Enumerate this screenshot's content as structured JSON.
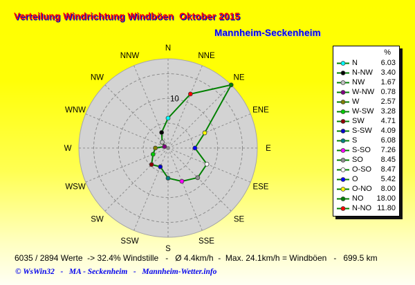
{
  "header": {
    "title": "Verteilung Windrichtung Windböen  Oktober 2015",
    "subtitle": "Mannheim-Seckenheim"
  },
  "colors": {
    "title": "#FF0000",
    "title_shadow": "#0000C8",
    "subtitle": "#0000EE",
    "background_top": "#FFFF00",
    "background_bottom": "#FFFFF4",
    "chart_disc": "#D3D3D3",
    "grid": "#8C8C8C",
    "legend_bg": "#FFFFFF",
    "legend_border": "#000000",
    "status_text": "#000000",
    "footer_text": "#0000EE"
  },
  "chart_data": {
    "type": "line",
    "subtype": "wind-rose-polar",
    "unit": "%",
    "radial_max": 18,
    "rings": [
      5,
      10,
      15
    ],
    "ring_label": "10",
    "line_color": "#008000",
    "axis_labels": [
      "N",
      "NNE",
      "NE",
      "ENE",
      "E",
      "ESE",
      "SE",
      "SSE",
      "S",
      "SSW",
      "SW",
      "WSW",
      "W",
      "WNW",
      "NW",
      "NNW"
    ],
    "points": [
      {
        "dir": "N",
        "value": 6.03,
        "color": "#00FFFF"
      },
      {
        "dir": "NNE",
        "value": 11.8,
        "color": "#FF0000"
      },
      {
        "dir": "NE",
        "value": 18.0,
        "color": "#008000"
      },
      {
        "dir": "ENE",
        "value": 8.0,
        "color": "#FFFF00"
      },
      {
        "dir": "E",
        "value": 5.42,
        "color": "#0000FF"
      },
      {
        "dir": "ESE",
        "value": 8.47,
        "color": "#FFFFFF"
      },
      {
        "dir": "SE",
        "value": 8.45,
        "color": "#909090"
      },
      {
        "dir": "SSE",
        "value": 7.26,
        "color": "#FF00FF"
      },
      {
        "dir": "S",
        "value": 6.08,
        "color": "#008080"
      },
      {
        "dir": "SSW",
        "value": 4.09,
        "color": "#0000CD"
      },
      {
        "dir": "SW",
        "value": 4.71,
        "color": "#900000"
      },
      {
        "dir": "WSW",
        "value": 3.28,
        "color": "#00CC00"
      },
      {
        "dir": "W",
        "value": 2.57,
        "color": "#808000"
      },
      {
        "dir": "WNW",
        "value": 0.78,
        "color": "#800080"
      },
      {
        "dir": "NW",
        "value": 1.67,
        "color": "#C0C0C0"
      },
      {
        "dir": "NNW",
        "value": 3.4,
        "color": "#000000"
      }
    ]
  },
  "legend": {
    "header": "%",
    "items": [
      {
        "label": "N",
        "value": "6.03",
        "color": "#00FFFF"
      },
      {
        "label": "N-NW",
        "value": "3.40",
        "color": "#000000"
      },
      {
        "label": "NW",
        "value": "1.67",
        "color": "#C0C0C0"
      },
      {
        "label": "W-NW",
        "value": "0.78",
        "color": "#800080"
      },
      {
        "label": "W",
        "value": "2.57",
        "color": "#808000"
      },
      {
        "label": "W-SW",
        "value": "3.28",
        "color": "#00CC00"
      },
      {
        "label": "SW",
        "value": "4.71",
        "color": "#900000"
      },
      {
        "label": "S-SW",
        "value": "4.09",
        "color": "#0000CD"
      },
      {
        "label": "S",
        "value": "6.08",
        "color": "#008080"
      },
      {
        "label": "S-SO",
        "value": "7.26",
        "color": "#FF00FF"
      },
      {
        "label": "SO",
        "value": "8.45",
        "color": "#909090"
      },
      {
        "label": "O-SO",
        "value": "8.47",
        "color": "#FFFFFF"
      },
      {
        "label": "O",
        "value": "5.42",
        "color": "#0000FF"
      },
      {
        "label": "O-NO",
        "value": "8.00",
        "color": "#FFFF00"
      },
      {
        "label": "NO",
        "value": "18.00",
        "color": "#008000"
      },
      {
        "label": "N-NO",
        "value": "11.80",
        "color": "#FF0000"
      }
    ]
  },
  "status_line": "6035 / 2894 Werte  -> 32.4% Windstille   -   Ø 4.4km/h  -  Max. 24.1km/h = Windböen   -   699.5 km",
  "footer": "© WsWin32   -   MA - Seckenheim   -   Mannheim-Wetter.info"
}
